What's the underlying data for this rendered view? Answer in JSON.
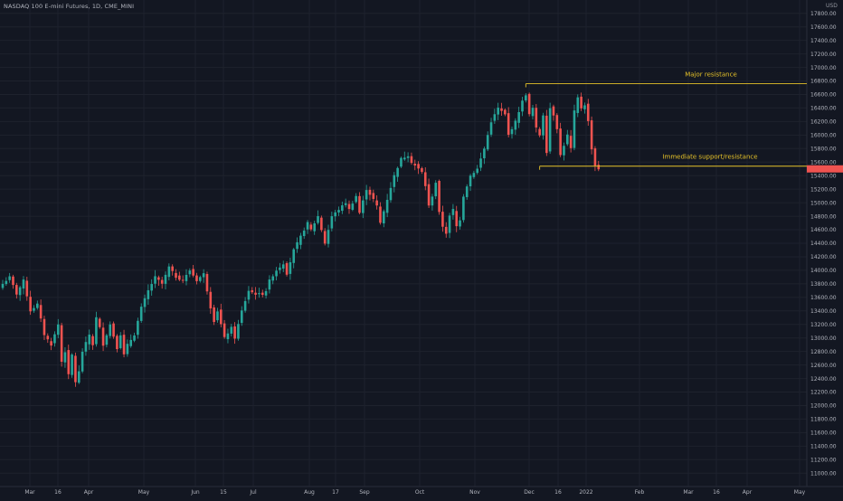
{
  "header": {
    "title": "NASDAQ 100 E-mini Futures, 1D, CME_MINI",
    "currency": "USD"
  },
  "chart_data": {
    "type": "candlestick",
    "title": "NASDAQ 100 E-mini Futures, 1D, CME_MINI",
    "ylabel": "USD",
    "ylim": [
      10850,
      17950
    ],
    "y_ticks": [
      11000,
      11200,
      11400,
      11600,
      11800,
      12000,
      12200,
      12400,
      12600,
      12800,
      13000,
      13200,
      13400,
      13600,
      13800,
      14000,
      14200,
      14400,
      14600,
      14800,
      15000,
      15200,
      15400,
      15600,
      15800,
      16000,
      16200,
      16400,
      16600,
      16800,
      17000,
      17200,
      17400,
      17600,
      17800
    ],
    "x_ticks": [
      "Mar",
      "16",
      "Apr",
      "May",
      "Jun",
      "15",
      "Jul",
      "Aug",
      "17",
      "Sep",
      "Oct",
      "Nov",
      "Dec",
      "16",
      "2022",
      "Feb",
      "Mar",
      "16",
      "Apr",
      "May"
    ],
    "grid": true,
    "up_color": "#26a69a",
    "down_color": "#ef5350",
    "annotation_color": "#e6c229",
    "path": [
      [
        0,
        13800
      ],
      [
        2,
        13900
      ],
      [
        4,
        13650
      ],
      [
        6,
        13850
      ],
      [
        8,
        13400
      ],
      [
        10,
        13500
      ],
      [
        12,
        13050
      ],
      [
        14,
        12900
      ],
      [
        16,
        13200
      ],
      [
        17,
        12650
      ],
      [
        18,
        12800
      ],
      [
        19,
        12450
      ],
      [
        20,
        12750
      ],
      [
        21,
        12350
      ],
      [
        22,
        12500
      ],
      [
        23,
        12800
      ],
      [
        25,
        13050
      ],
      [
        26,
        12900
      ],
      [
        27,
        13300
      ],
      [
        28,
        13150
      ],
      [
        29,
        12900
      ],
      [
        31,
        13200
      ],
      [
        33,
        12850
      ],
      [
        34,
        13050
      ],
      [
        35,
        12750
      ],
      [
        36,
        12900
      ],
      [
        38,
        13050
      ],
      [
        40,
        13450
      ],
      [
        42,
        13700
      ],
      [
        44,
        13900
      ],
      [
        46,
        13800
      ],
      [
        48,
        14050
      ],
      [
        50,
        13900
      ],
      [
        52,
        13850
      ],
      [
        54,
        14000
      ],
      [
        56,
        13850
      ],
      [
        58,
        13950
      ],
      [
        59,
        13700
      ],
      [
        60,
        13450
      ],
      [
        61,
        13250
      ],
      [
        62,
        13400
      ],
      [
        63,
        13200
      ],
      [
        64,
        13000
      ],
      [
        66,
        13150
      ],
      [
        67,
        13000
      ],
      [
        68,
        13200
      ],
      [
        69,
        13400
      ],
      [
        71,
        13700
      ],
      [
        73,
        13650
      ],
      [
        75,
        13650
      ],
      [
        76,
        13700
      ],
      [
        77,
        13850
      ],
      [
        79,
        14000
      ],
      [
        81,
        14100
      ],
      [
        82,
        13950
      ],
      [
        84,
        14300
      ],
      [
        86,
        14500
      ],
      [
        88,
        14700
      ],
      [
        89,
        14600
      ],
      [
        91,
        14800
      ],
      [
        92,
        14600
      ],
      [
        93,
        14400
      ],
      [
        95,
        14800
      ],
      [
        97,
        14900
      ],
      [
        99,
        15000
      ],
      [
        100,
        14900
      ],
      [
        102,
        15100
      ],
      [
        103,
        14850
      ],
      [
        105,
        15200
      ],
      [
        107,
        15050
      ],
      [
        108,
        14950
      ],
      [
        109,
        14700
      ],
      [
        111,
        15050
      ],
      [
        113,
        15400
      ],
      [
        115,
        15650
      ],
      [
        117,
        15700
      ],
      [
        118,
        15600
      ],
      [
        119,
        15550
      ],
      [
        121,
        15450
      ],
      [
        122,
        15250
      ],
      [
        123,
        14950
      ],
      [
        124,
        15100
      ],
      [
        125,
        15300
      ],
      [
        126,
        14850
      ],
      [
        127,
        14650
      ],
      [
        128,
        14550
      ],
      [
        129,
        14800
      ],
      [
        130,
        14900
      ],
      [
        131,
        14650
      ],
      [
        132,
        14750
      ],
      [
        133,
        15100
      ],
      [
        135,
        15400
      ],
      [
        137,
        15500
      ],
      [
        139,
        15800
      ],
      [
        141,
        16200
      ],
      [
        143,
        16400
      ],
      [
        145,
        16300
      ],
      [
        146,
        16000
      ],
      [
        148,
        16200
      ],
      [
        150,
        16500
      ],
      [
        151,
        16600
      ],
      [
        152,
        16300
      ],
      [
        153,
        16400
      ],
      [
        154,
        16100
      ],
      [
        155,
        16000
      ],
      [
        156,
        16300
      ],
      [
        157,
        15750
      ],
      [
        158,
        16400
      ],
      [
        159,
        16300
      ],
      [
        160,
        16100
      ],
      [
        161,
        15700
      ],
      [
        163,
        16000
      ],
      [
        164,
        15800
      ],
      [
        165,
        16350
      ],
      [
        166,
        16550
      ],
      [
        167,
        16400
      ],
      [
        168,
        16450
      ],
      [
        169,
        16200
      ],
      [
        170,
        15800
      ],
      [
        171,
        15550
      ],
      [
        172,
        15500
      ]
    ],
    "candles_count": 173,
    "annotations": [
      {
        "label": "Major resistance",
        "price": 16760,
        "x_start_index": 151
      },
      {
        "label": "Immediate support/resistance",
        "price": 15540,
        "x_start_index": 155
      }
    ]
  }
}
